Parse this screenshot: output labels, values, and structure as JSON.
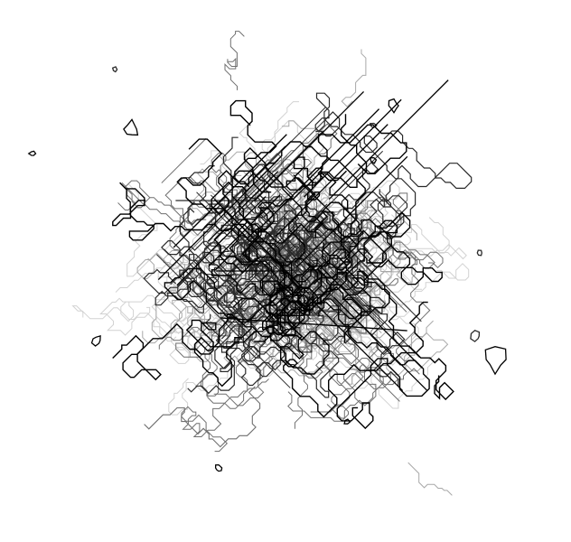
{
  "drawing": {
    "subject": "abstract-line-scribble-artwork",
    "background_color": "#ffffff",
    "palette": {
      "darkest": "#000000",
      "dark": "#2a2a2a",
      "mid": "#6f6f6f",
      "light": "#a8a8a8",
      "faint": "#d2d2d2"
    },
    "texture": "jagged-contour-lines-and-diagonal-crosshatch"
  }
}
